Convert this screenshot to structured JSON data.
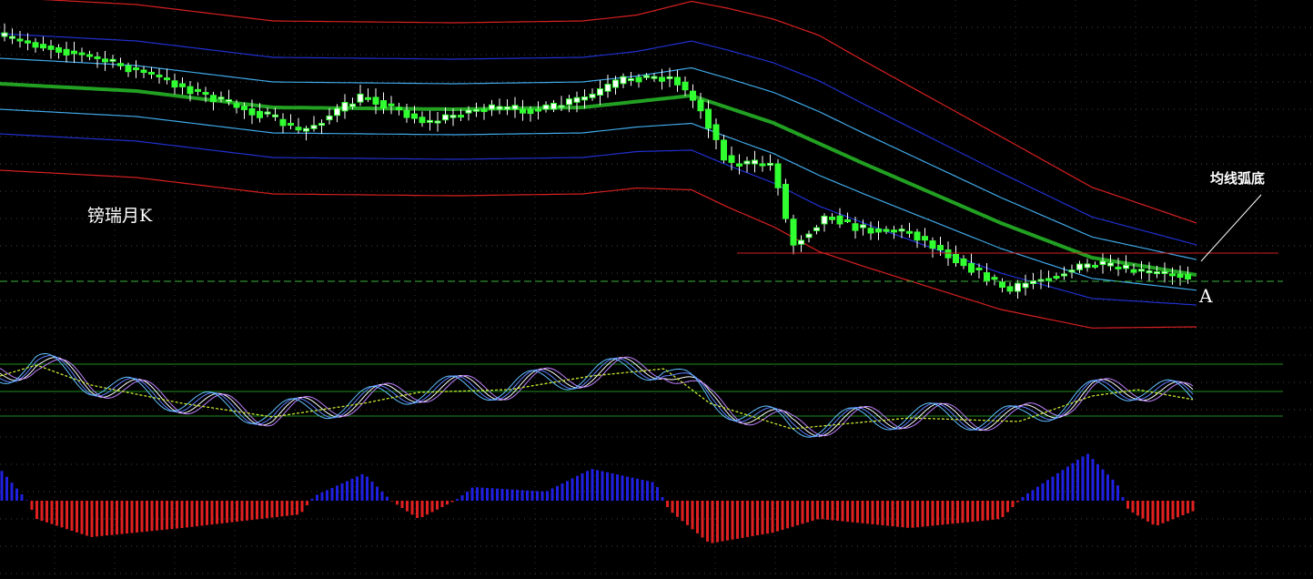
{
  "title": "镑瑞月K",
  "annotation": "均线弧底",
  "point_label": "A"
}
